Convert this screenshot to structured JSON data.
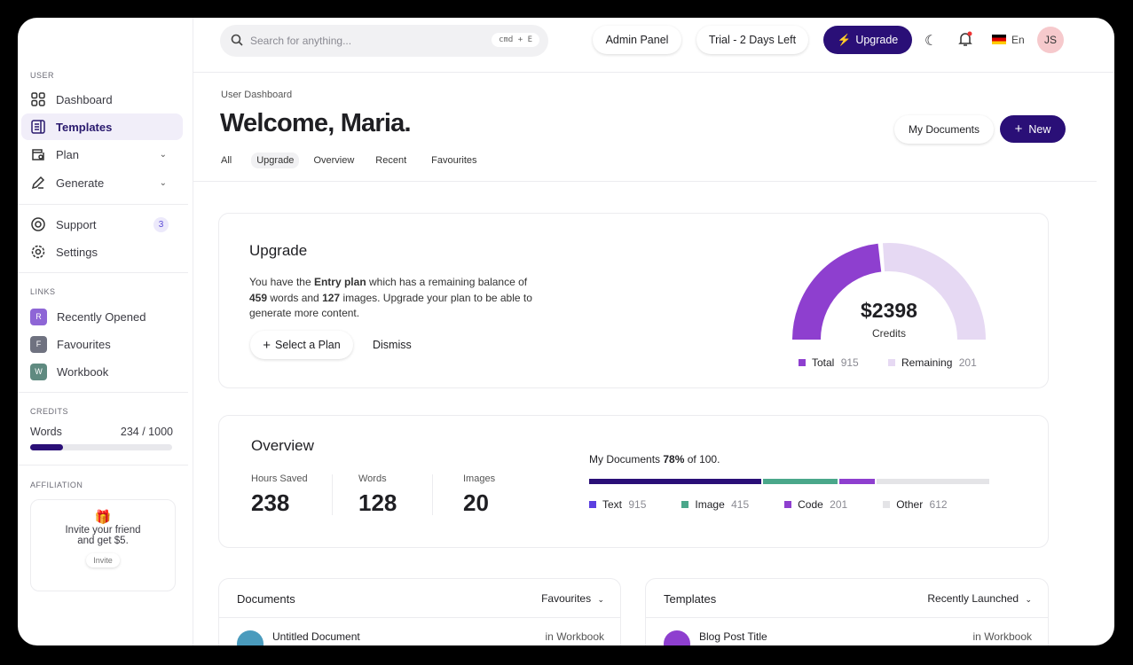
{
  "sidebar": {
    "user_section": "USER",
    "items": [
      {
        "label": "Dashboard",
        "icon": "grid-icon"
      },
      {
        "label": "Templates",
        "icon": "document-icon"
      },
      {
        "label": "Plan",
        "icon": "wallet-icon"
      },
      {
        "label": "Generate",
        "icon": "pencil-icon"
      },
      {
        "label": "Support",
        "icon": "lifebuoy-icon",
        "badge": "3"
      },
      {
        "label": "Settings",
        "icon": "gear-icon"
      }
    ],
    "links_section": "LINKS",
    "links": [
      {
        "letter": "R",
        "label": "Recently Opened",
        "color": "#8e66d6"
      },
      {
        "letter": "F",
        "label": "Favourites",
        "color": "#6f7280"
      },
      {
        "letter": "W",
        "label": "Workbook",
        "color": "#5f8a80"
      }
    ],
    "credits_section": "CREDITS",
    "credits_label": "Words",
    "credits_value": "234 / 1000",
    "credits_fraction": 0.234,
    "affiliation_section": "AFFILIATION",
    "invite_text_1": "Invite your friend",
    "invite_text_2": "and get $5.",
    "invite_button": "Invite"
  },
  "header": {
    "search_placeholder": "Search for anything...",
    "search_shortcut": "cmd + E",
    "admin": "Admin Panel",
    "trial": "Trial - 2 Days Left",
    "upgrade": "Upgrade",
    "lang": "En",
    "avatar": "JS"
  },
  "page": {
    "breadcrumb": "User Dashboard",
    "title": "Welcome, Maria.",
    "my_documents": "My Documents",
    "new": "New",
    "tabs": [
      "All",
      "Upgrade",
      "Overview",
      "Recent",
      "Favourites"
    ]
  },
  "upgrade": {
    "title": "Upgrade",
    "t1": "You have the ",
    "plan": "Entry plan",
    "t2": " which has a remaining balance of",
    "words": "459",
    "t3": " words and ",
    "images": "127",
    "t4": " images. Upgrade your plan to be able to",
    "t5": "generate more content.",
    "select": "Select a Plan",
    "dismiss": "Dismiss",
    "gauge_value": "$2398",
    "gauge_label": "Credits",
    "gauge_fill": 0.47,
    "total_label": "Total",
    "total": "915",
    "remaining_label": "Remaining",
    "remaining": "201",
    "color_total": "#8e3fcf",
    "color_remaining": "#e6d9f3"
  },
  "overview": {
    "title": "Overview",
    "stats": [
      {
        "label": "Hours Saved",
        "value": "238"
      },
      {
        "label": "Words",
        "value": "128"
      },
      {
        "label": "Images",
        "value": "20"
      }
    ],
    "docs_t1": "My Documents ",
    "docs_pct": "78%",
    "docs_t2": " of 100.",
    "segments": [
      {
        "label": "Text",
        "value": "915",
        "color": "#2a0f77",
        "share": 0.435
      },
      {
        "label": "Image",
        "value": "415",
        "color": "#4aa78a",
        "share": 0.19
      },
      {
        "label": "Code",
        "value": "201",
        "color": "#8e3fcf",
        "share": 0.09
      },
      {
        "label": "Other",
        "value": "612",
        "color": "#e4e4e7",
        "share": 0.285
      }
    ]
  },
  "documents": {
    "title": "Documents",
    "filter": "Favourites",
    "row_title": "Untitled Document",
    "row_loc": "in Workbook"
  },
  "templates": {
    "title": "Templates",
    "filter": "Recently Launched",
    "row_title": "Blog Post Title",
    "row_loc": "in Workbook"
  }
}
